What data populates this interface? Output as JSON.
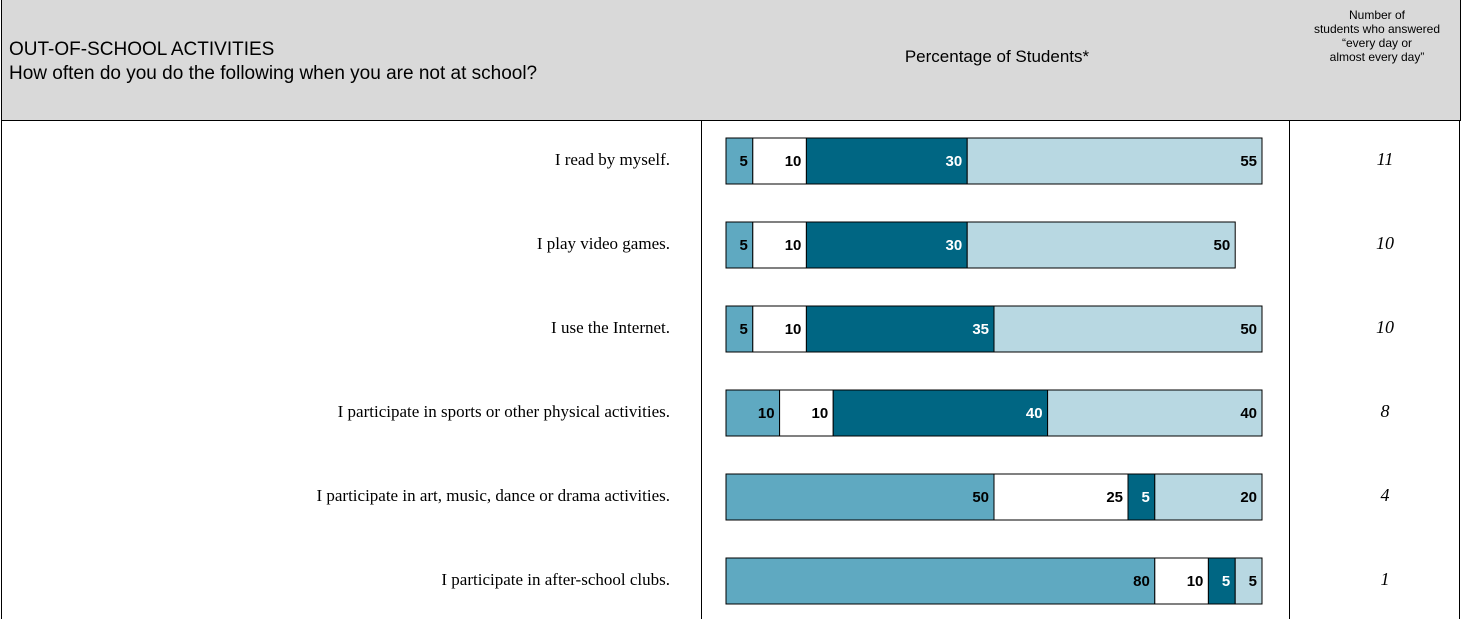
{
  "header": {
    "title_line1": "OUT-OF-SCHOOL ACTIVITIES",
    "title_line2": "How often do you do the following when you are not at school?",
    "center_label": "Percentage of Students*",
    "right_label_lines": [
      "Number of",
      "students who answered",
      "“every day or",
      "almost every day”"
    ]
  },
  "colors": {
    "seg1": "#5fa9c1",
    "seg2": "#ffffff",
    "seg3": "#006683",
    "seg4": "#b8d8e2",
    "header_bg": "#d9d9d9",
    "seg3_text": "#ffffff",
    "default_text": "#000000"
  },
  "chart_data": {
    "type": "bar",
    "orientation": "horizontal",
    "stacked": true,
    "xlim": [
      0,
      100
    ],
    "categories": [
      "I read by myself.",
      "I play video games.",
      "I use the Internet.",
      "I participate in sports or other physical activities.",
      "I participate in art, music, dance or drama activities.",
      "I participate in after-school clubs."
    ],
    "series": [
      {
        "values": [
          5,
          5,
          5,
          10,
          50,
          80
        ]
      },
      {
        "values": [
          10,
          10,
          10,
          10,
          25,
          10
        ]
      },
      {
        "values": [
          30,
          30,
          35,
          40,
          5,
          5
        ]
      },
      {
        "values": [
          55,
          50,
          50,
          40,
          20,
          5
        ]
      }
    ],
    "counts": [
      "11",
      "10",
      "10",
      "8",
      "4",
      "1"
    ]
  }
}
